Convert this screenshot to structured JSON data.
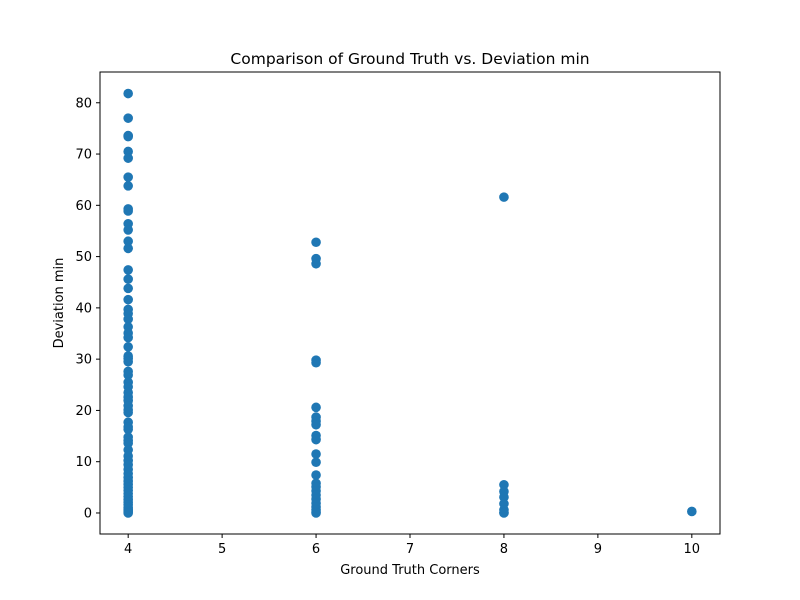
{
  "chart_data": {
    "type": "scatter",
    "title": "Comparison of Ground Truth vs. Deviation min",
    "xlabel": "Ground Truth Corners",
    "ylabel": "Deviation min",
    "xlim": [
      3.7,
      10.3
    ],
    "ylim": [
      -4.1,
      86.0
    ],
    "x_ticks": [
      4,
      5,
      6,
      7,
      8,
      9,
      10
    ],
    "y_ticks": [
      0,
      10,
      20,
      30,
      40,
      50,
      60,
      70,
      80
    ],
    "grid": false,
    "marker_color": "#1f77b4",
    "series": [
      {
        "name": "Deviation min",
        "points": [
          [
            4,
            81.8
          ],
          [
            4,
            77.0
          ],
          [
            4,
            73.6
          ],
          [
            4,
            73.4
          ],
          [
            4,
            70.5
          ],
          [
            4,
            69.2
          ],
          [
            4,
            65.5
          ],
          [
            4,
            63.8
          ],
          [
            4,
            59.3
          ],
          [
            4,
            58.9
          ],
          [
            4,
            56.4
          ],
          [
            4,
            55.2
          ],
          [
            4,
            53.0
          ],
          [
            4,
            51.6
          ],
          [
            4,
            47.4
          ],
          [
            4,
            45.6
          ],
          [
            4,
            43.8
          ],
          [
            4,
            41.6
          ],
          [
            4,
            39.7
          ],
          [
            4,
            38.9
          ],
          [
            4,
            37.8
          ],
          [
            4,
            36.3
          ],
          [
            4,
            35.1
          ],
          [
            4,
            34.2
          ],
          [
            4,
            32.4
          ],
          [
            4,
            30.6
          ],
          [
            4,
            30.1
          ],
          [
            4,
            29.5
          ],
          [
            4,
            27.6
          ],
          [
            4,
            26.9
          ],
          [
            4,
            25.5
          ],
          [
            4,
            24.6
          ],
          [
            4,
            23.5
          ],
          [
            4,
            22.6
          ],
          [
            4,
            21.9
          ],
          [
            4,
            20.9
          ],
          [
            4,
            20.1
          ],
          [
            4,
            19.6
          ],
          [
            4,
            17.7
          ],
          [
            4,
            16.8
          ],
          [
            4,
            16.3
          ],
          [
            4,
            14.8
          ],
          [
            4,
            14.1
          ],
          [
            4,
            13.6
          ],
          [
            4,
            12.3
          ],
          [
            4,
            11.1
          ],
          [
            4,
            10.2
          ],
          [
            4,
            9.4
          ],
          [
            4,
            8.5
          ],
          [
            4,
            7.7
          ],
          [
            4,
            6.9
          ],
          [
            4,
            6.2
          ],
          [
            4,
            5.6
          ],
          [
            4,
            5.0
          ],
          [
            4,
            4.4
          ],
          [
            4,
            3.8
          ],
          [
            4,
            3.2
          ],
          [
            4,
            2.6
          ],
          [
            4,
            2.1
          ],
          [
            4,
            1.6
          ],
          [
            4,
            1.1
          ],
          [
            4,
            0.7
          ],
          [
            4,
            0.4
          ],
          [
            4,
            0.2
          ],
          [
            4,
            0.0
          ],
          [
            6,
            52.8
          ],
          [
            6,
            49.6
          ],
          [
            6,
            48.6
          ],
          [
            6,
            29.8
          ],
          [
            6,
            29.3
          ],
          [
            6,
            20.6
          ],
          [
            6,
            18.7
          ],
          [
            6,
            17.9
          ],
          [
            6,
            17.2
          ],
          [
            6,
            15.1
          ],
          [
            6,
            14.3
          ],
          [
            6,
            11.5
          ],
          [
            6,
            9.9
          ],
          [
            6,
            7.4
          ],
          [
            6,
            5.8
          ],
          [
            6,
            5.1
          ],
          [
            6,
            4.3
          ],
          [
            6,
            3.5
          ],
          [
            6,
            2.7
          ],
          [
            6,
            1.9
          ],
          [
            6,
            1.2
          ],
          [
            6,
            0.6
          ],
          [
            6,
            0.2
          ],
          [
            6,
            0.0
          ],
          [
            8,
            61.6
          ],
          [
            8,
            5.5
          ],
          [
            8,
            4.2
          ],
          [
            8,
            3.1
          ],
          [
            8,
            1.8
          ],
          [
            8,
            0.6
          ],
          [
            8,
            0.1
          ],
          [
            8,
            0.0
          ],
          [
            10,
            0.3
          ]
        ]
      }
    ]
  }
}
